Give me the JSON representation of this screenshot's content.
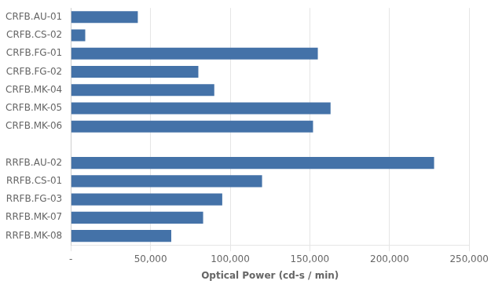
{
  "chart_data": {
    "type": "bar",
    "orientation": "horizontal",
    "categories": [
      "CRFB.AU-01",
      "CRFB.CS-02",
      "CRFB.FG-01",
      "CRFB.FG-02",
      "CRFB.MK-04",
      "CRFB.MK-05",
      "CRFB.MK-06",
      null,
      "RRFB.AU-02",
      "RRFB.CS-01",
      "RRFB.FG-03",
      "RRFB.MK-07",
      "RRFB.MK-08"
    ],
    "values": [
      42000,
      9000,
      155000,
      80000,
      90000,
      163000,
      152000,
      null,
      228000,
      120000,
      95000,
      83000,
      63000
    ],
    "color": "#4472a8",
    "xlabel": "Optical Power (cd-s / min)",
    "xlim": [
      0,
      250000
    ],
    "xticks": [
      {
        "value": 0,
        "label": "-"
      },
      {
        "value": 50000,
        "label": "50,000"
      },
      {
        "value": 100000,
        "label": "100,000"
      },
      {
        "value": 150000,
        "label": "150,000"
      },
      {
        "value": 200000,
        "label": "200,000"
      },
      {
        "value": 250000,
        "label": "250,000"
      }
    ],
    "grid": true
  }
}
